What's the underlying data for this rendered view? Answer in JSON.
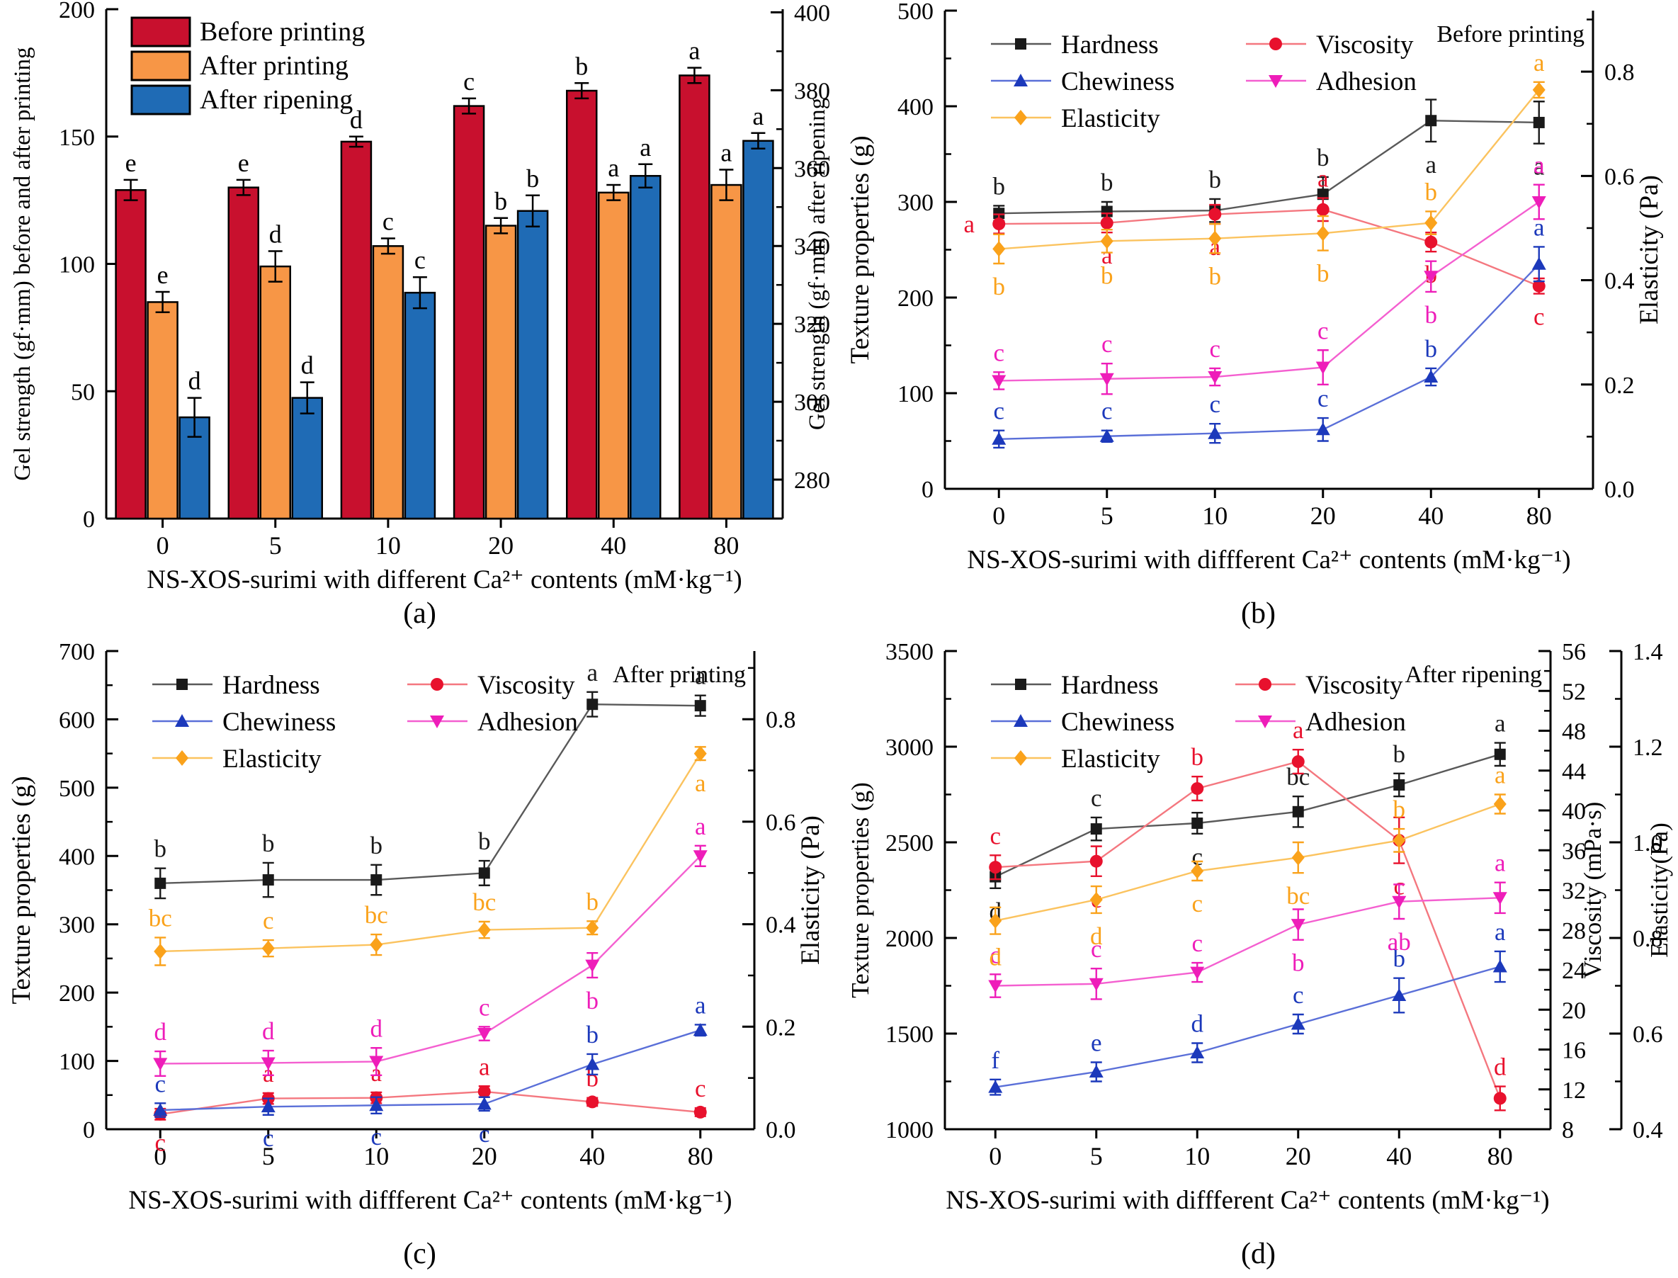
{
  "figure": {
    "background": "#ffffff"
  },
  "chart_data": [
    {
      "id": "a",
      "type": "bar",
      "caption": "(a)",
      "xlabel": "NS-XOS-surimi with different Ca²⁺ contents (mM·kg⁻¹)",
      "ylabel_left": "Gel strength (gf·mm) before and after printing",
      "ylabel_right": "Gel strength (gf·mm) after ripening",
      "categories": [
        "0",
        "5",
        "10",
        "20",
        "40",
        "80"
      ],
      "ylim_left": [
        0,
        200
      ],
      "yticks_left": [
        [
          0,
          "0"
        ],
        [
          50,
          "50"
        ],
        [
          100,
          "100"
        ],
        [
          150,
          "150"
        ],
        [
          200,
          "200"
        ]
      ],
      "ylim_right": [
        270,
        400.8
      ],
      "yticks_right": [
        [
          280,
          "280"
        ],
        [
          300,
          "300"
        ],
        [
          320,
          "320"
        ],
        [
          340,
          "340"
        ],
        [
          360,
          "360"
        ],
        [
          380,
          "380"
        ],
        [
          400,
          "400"
        ]
      ],
      "yminor_right": 10,
      "series": [
        {
          "name": "Before printing",
          "color": "#c8102e",
          "axis": "left",
          "values": [
            129,
            130,
            148,
            162,
            168,
            174
          ],
          "errors": [
            4,
            3,
            2,
            3,
            3,
            3
          ],
          "letters": [
            "e",
            "e",
            "d",
            "c",
            "b",
            "a"
          ],
          "letter_sides": [
            "above",
            "above",
            "above",
            "above",
            "above",
            "above"
          ]
        },
        {
          "name": "After printing",
          "color": "#f79646",
          "axis": "left",
          "values": [
            85,
            99,
            107,
            115,
            128,
            131
          ],
          "errors": [
            4,
            6,
            3,
            3,
            3,
            6
          ],
          "letters": [
            "e",
            "d",
            "c",
            "b",
            "a",
            "a"
          ],
          "letter_sides": [
            "above",
            "above",
            "above",
            "above",
            "above",
            "above"
          ]
        },
        {
          "name": "After ripening",
          "color": "#1f6bb5",
          "axis": "right",
          "values": [
            296,
            301,
            328,
            349,
            358,
            367
          ],
          "errors": [
            5,
            4,
            4,
            4,
            3,
            2
          ],
          "letters": [
            "d",
            "d",
            "c",
            "b",
            "a",
            "a"
          ],
          "letter_sides": [
            "above",
            "above",
            "above",
            "above",
            "above",
            "above"
          ]
        }
      ]
    },
    {
      "id": "b",
      "type": "line",
      "caption": "(b)",
      "corner_label": "Before printing",
      "xlabel": "NS-XOS-surimi with diffferent Ca²⁺ contents (mM·kg⁻¹)",
      "ylabel_left": "Texture properties (g)",
      "ylabel_right": "Elasticity (Pa)",
      "categories": [
        "0",
        "5",
        "10",
        "20",
        "40",
        "80"
      ],
      "ylim_left": [
        0,
        500
      ],
      "yticks_left": [
        [
          0,
          "0"
        ],
        [
          100,
          "100"
        ],
        [
          200,
          "200"
        ],
        [
          300,
          "300"
        ],
        [
          400,
          "400"
        ],
        [
          500,
          "500"
        ]
      ],
      "yminor_left": 50,
      "ylim_right": [
        0,
        0.917
      ],
      "yticks_right": [
        [
          0,
          "0.0"
        ],
        [
          0.2,
          "0.2"
        ],
        [
          0.4,
          "0.4"
        ],
        [
          0.6,
          "0.6"
        ],
        [
          0.8,
          "0.8"
        ]
      ],
      "yminor_right": 0.1,
      "series": [
        {
          "name": "Hardness",
          "color": "#1a1a1a",
          "line_color": "#595959",
          "marker": "square",
          "axis": "left",
          "values": [
            288,
            290,
            291,
            308,
            385,
            383
          ],
          "errors": [
            8,
            10,
            12,
            18,
            22,
            22
          ],
          "letters": [
            "b",
            "b",
            "b",
            "b",
            "a",
            "a"
          ],
          "letter_sides": [
            "above",
            "above",
            "above",
            "above",
            "below",
            "below"
          ]
        },
        {
          "name": "Viscosity",
          "color": "#e8112d",
          "line_color": "#f4777f",
          "marker": "circle",
          "axis": "left",
          "values": [
            277,
            278,
            287,
            292,
            258,
            212
          ],
          "errors": [
            10,
            10,
            10,
            12,
            10,
            8
          ],
          "letters": [
            "a",
            "a",
            "a",
            "a",
            "b",
            "c"
          ],
          "letter_sides": [
            "left",
            "below",
            "below",
            "above",
            "below",
            "below"
          ]
        },
        {
          "name": "Chewiness",
          "color": "#1c39bb",
          "line_color": "#5a6fd8",
          "marker": "triangle-up",
          "axis": "left",
          "values": [
            52,
            55,
            58,
            62,
            117,
            235
          ],
          "errors": [
            9,
            6,
            10,
            12,
            9,
            18
          ],
          "letters": [
            "c",
            "c",
            "c",
            "c",
            "b",
            "a"
          ],
          "letter_sides": [
            "above",
            "above",
            "above",
            "above",
            "above",
            "above"
          ]
        },
        {
          "name": "Adhesion",
          "color": "#ee1db9",
          "line_color": "#f45fd0",
          "marker": "triangle-down",
          "axis": "left",
          "values": [
            113,
            115,
            117,
            127,
            222,
            300
          ],
          "errors": [
            9,
            16,
            9,
            18,
            16,
            18
          ],
          "letters": [
            "c",
            "c",
            "c",
            "c",
            "b",
            "a"
          ],
          "letter_sides": [
            "above",
            "above",
            "above",
            "above",
            "below",
            "above"
          ]
        },
        {
          "name": "Elasticity",
          "color": "#faa21b",
          "line_color": "#fbc35f",
          "marker": "diamond",
          "axis": "right",
          "values": [
            0.46,
            0.475,
            0.48,
            0.49,
            0.51,
            0.765
          ],
          "errors": [
            0.028,
            0.022,
            0.028,
            0.033,
            0.022,
            0.015
          ],
          "letters": [
            "b",
            "b",
            "b",
            "b",
            "b",
            "a"
          ],
          "letter_sides": [
            "below",
            "below",
            "below",
            "below",
            "above",
            "above"
          ]
        }
      ]
    },
    {
      "id": "c",
      "type": "line",
      "caption": "(c)",
      "corner_label": "After printing",
      "xlabel": "NS-XOS-surimi with diffferent Ca²⁺ contents (mM·kg⁻¹)",
      "ylabel_left": "Texture properties (g)",
      "ylabel_right": "Elasticity (Pa)",
      "categories": [
        "0",
        "5",
        "10",
        "20",
        "40",
        "80"
      ],
      "ylim_left": [
        0,
        700
      ],
      "yticks_left": [
        [
          0,
          "0"
        ],
        [
          100,
          "100"
        ],
        [
          200,
          "200"
        ],
        [
          300,
          "300"
        ],
        [
          400,
          "400"
        ],
        [
          500,
          "500"
        ],
        [
          600,
          "600"
        ],
        [
          700,
          "700"
        ]
      ],
      "yminor_left": 50,
      "ylim_right": [
        0,
        0.933
      ],
      "yticks_right": [
        [
          0,
          "0.0"
        ],
        [
          0.2,
          "0.2"
        ],
        [
          0.4,
          "0.4"
        ],
        [
          0.6,
          "0.6"
        ],
        [
          0.8,
          "0.8"
        ]
      ],
      "yminor_right": 0.1,
      "series": [
        {
          "name": "Hardness",
          "color": "#1a1a1a",
          "line_color": "#595959",
          "marker": "square",
          "axis": "left",
          "values": [
            360,
            365,
            365,
            375,
            622,
            620
          ],
          "errors": [
            22,
            25,
            22,
            18,
            18,
            15
          ],
          "letters": [
            "b",
            "b",
            "b",
            "b",
            "a",
            "a"
          ],
          "letter_sides": [
            "above",
            "above",
            "above",
            "above",
            "above",
            "above"
          ]
        },
        {
          "name": "Viscosity",
          "color": "#e8112d",
          "line_color": "#f4777f",
          "marker": "circle",
          "axis": "left",
          "values": [
            22,
            45,
            46,
            55,
            40,
            25
          ],
          "errors": [
            8,
            8,
            8,
            8,
            6,
            6
          ],
          "letters": [
            "c",
            "a",
            "a",
            "a",
            "b",
            "c"
          ],
          "letter_sides": [
            "below",
            "above",
            "above",
            "above",
            "above",
            "above"
          ]
        },
        {
          "name": "Chewiness",
          "color": "#1c39bb",
          "line_color": "#5a6fd8",
          "marker": "triangle-up",
          "axis": "left",
          "values": [
            28,
            33,
            35,
            37,
            95,
            145
          ],
          "errors": [
            10,
            12,
            12,
            10,
            15,
            8
          ],
          "letters": [
            "c",
            "c",
            "c",
            "c",
            "b",
            "a"
          ],
          "letter_sides": [
            "above",
            "below",
            "below",
            "below",
            "above",
            "above"
          ]
        },
        {
          "name": "Adhesion",
          "color": "#ee1db9",
          "line_color": "#f45fd0",
          "marker": "triangle-down",
          "axis": "left",
          "values": [
            96,
            97,
            99,
            140,
            240,
            400
          ],
          "errors": [
            18,
            18,
            20,
            10,
            18,
            15
          ],
          "letters": [
            "d",
            "d",
            "d",
            "c",
            "b",
            "a"
          ],
          "letter_sides": [
            "above",
            "above",
            "above",
            "above",
            "below",
            "above"
          ]
        },
        {
          "name": "Elasticity",
          "color": "#faa21b",
          "line_color": "#fbc35f",
          "marker": "diamond",
          "axis": "right",
          "values": [
            0.347,
            0.353,
            0.36,
            0.389,
            0.393,
            0.733
          ],
          "errors": [
            0.027,
            0.016,
            0.02,
            0.016,
            0.013,
            0.013
          ],
          "letters": [
            "bc",
            "c",
            "bc",
            "bc",
            "b",
            "a"
          ],
          "letter_sides": [
            "above",
            "above",
            "above",
            "above",
            "above",
            "below"
          ]
        }
      ]
    },
    {
      "id": "d",
      "type": "line",
      "caption": "(d)",
      "corner_label": "After ripening",
      "xlabel": "NS-XOS-surimi with diffferent Ca²⁺ contents (mM·kg⁻¹)",
      "ylabel_left": "Texture properties (g)",
      "ylabel_right": "Viscosity (mPa·s)",
      "ylabel_right2": "Elasticity(Pa)",
      "categories": [
        "0",
        "5",
        "10",
        "20",
        "40",
        "80"
      ],
      "ylim_left": [
        1000,
        3500
      ],
      "yticks_left": [
        [
          1000,
          "1000"
        ],
        [
          1500,
          "1500"
        ],
        [
          2000,
          "2000"
        ],
        [
          2500,
          "2500"
        ],
        [
          3000,
          "3000"
        ],
        [
          3500,
          "3500"
        ]
      ],
      "yminor_left": 250,
      "ylim_right": [
        8,
        56
      ],
      "yticks_right": [
        [
          8,
          "8"
        ],
        [
          12,
          "12"
        ],
        [
          16,
          "16"
        ],
        [
          20,
          "20"
        ],
        [
          24,
          "24"
        ],
        [
          28,
          "28"
        ],
        [
          32,
          "32"
        ],
        [
          36,
          "36"
        ],
        [
          40,
          "40"
        ],
        [
          44,
          "44"
        ],
        [
          48,
          "48"
        ],
        [
          52,
          "52"
        ],
        [
          56,
          "56"
        ]
      ],
      "yminor_right": 2,
      "ylim_right2": [
        0.4,
        1.4
      ],
      "yticks_right2": [
        [
          0.4,
          "0.4"
        ],
        [
          0.6,
          "0.6"
        ],
        [
          0.8,
          "0.8"
        ],
        [
          1.0,
          "1.0"
        ],
        [
          1.2,
          "1.2"
        ],
        [
          1.4,
          "1.4"
        ]
      ],
      "yminor_right2": 0.1,
      "series": [
        {
          "name": "Hardness",
          "color": "#1a1a1a",
          "line_color": "#595959",
          "marker": "square",
          "axis": "left",
          "values": [
            2320,
            2570,
            2600,
            2660,
            2800,
            2960
          ],
          "errors": [
            60,
            60,
            55,
            80,
            60,
            60
          ],
          "letters": [
            "d",
            "c",
            "c",
            "bc",
            "b",
            "a"
          ],
          "letter_sides": [
            "below",
            "above",
            "below",
            "above",
            "above",
            "above"
          ]
        },
        {
          "name": "Viscosity",
          "color": "#e8112d",
          "line_color": "#f4777f",
          "marker": "circle",
          "axis": "right",
          "values": [
            34.3,
            34.9,
            42.2,
            44.9,
            37,
            11.1
          ],
          "errors": [
            1.2,
            1.5,
            1.2,
            1.2,
            2.3,
            1.2
          ],
          "letters": [
            "c",
            "c",
            "b",
            "a",
            "c",
            "d"
          ],
          "letter_sides": [
            "above",
            "below",
            "above",
            "above",
            "below",
            "above"
          ]
        },
        {
          "name": "Chewiness",
          "color": "#1c39bb",
          "line_color": "#5a6fd8",
          "marker": "triangle-up",
          "axis": "left",
          "values": [
            1220,
            1300,
            1400,
            1550,
            1700,
            1850
          ],
          "errors": [
            40,
            50,
            50,
            50,
            90,
            80
          ],
          "letters": [
            "f",
            "e",
            "d",
            "c",
            "b",
            "a"
          ],
          "letter_sides": [
            "above",
            "above",
            "above",
            "above",
            "above",
            "above"
          ]
        },
        {
          "name": "Adhesion",
          "color": "#ee1db9",
          "line_color": "#f45fd0",
          "marker": "triangle-down",
          "axis": "left",
          "values": [
            1750,
            1760,
            1820,
            2070,
            2190,
            2210
          ],
          "errors": [
            60,
            80,
            50,
            80,
            90,
            80
          ],
          "letters": [
            "c",
            "c",
            "c",
            "b",
            "ab",
            "a"
          ],
          "letter_sides": [
            "above",
            "above",
            "above",
            "below",
            "below",
            "above"
          ]
        },
        {
          "name": "Elasticity",
          "color": "#faa21b",
          "line_color": "#fbc35f",
          "marker": "diamond",
          "axis": "right2",
          "values": [
            0.836,
            0.88,
            0.94,
            0.968,
            1.004,
            1.08
          ],
          "errors": [
            0.028,
            0.028,
            0.02,
            0.032,
            0.024,
            0.02
          ],
          "letters": [
            "d",
            "d",
            "c",
            "bc",
            "b",
            "a"
          ],
          "letter_sides": [
            "below",
            "below",
            "below",
            "below",
            "above",
            "above"
          ]
        }
      ]
    }
  ]
}
